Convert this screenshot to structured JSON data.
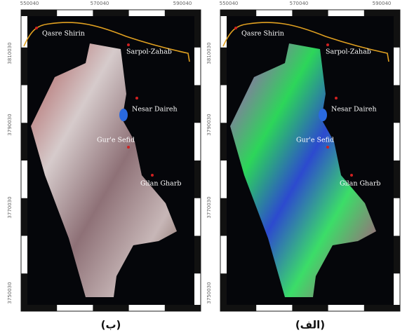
{
  "panels": [
    {
      "caption": "(ب)",
      "x_labels": [
        550040,
        570040,
        590040
      ],
      "y_labels": [
        3810030,
        3790030,
        3770030,
        3750030
      ],
      "places": [
        "Qasre Shirin",
        "Sarpol-Zahab",
        "Nesar Daireh",
        "Gur'e Sefid",
        "Gilan Gharb"
      ]
    },
    {
      "caption": "(الف)",
      "x_labels": [
        550040,
        570040,
        590040
      ],
      "y_labels": [
        3810030,
        3790030,
        3770030,
        3750030
      ],
      "places": [
        "Qasre Shirin",
        "Sarpol-Zahab",
        "Nesar Daireh",
        "Gur'e Sefid",
        "Gilan Gharb"
      ]
    }
  ]
}
